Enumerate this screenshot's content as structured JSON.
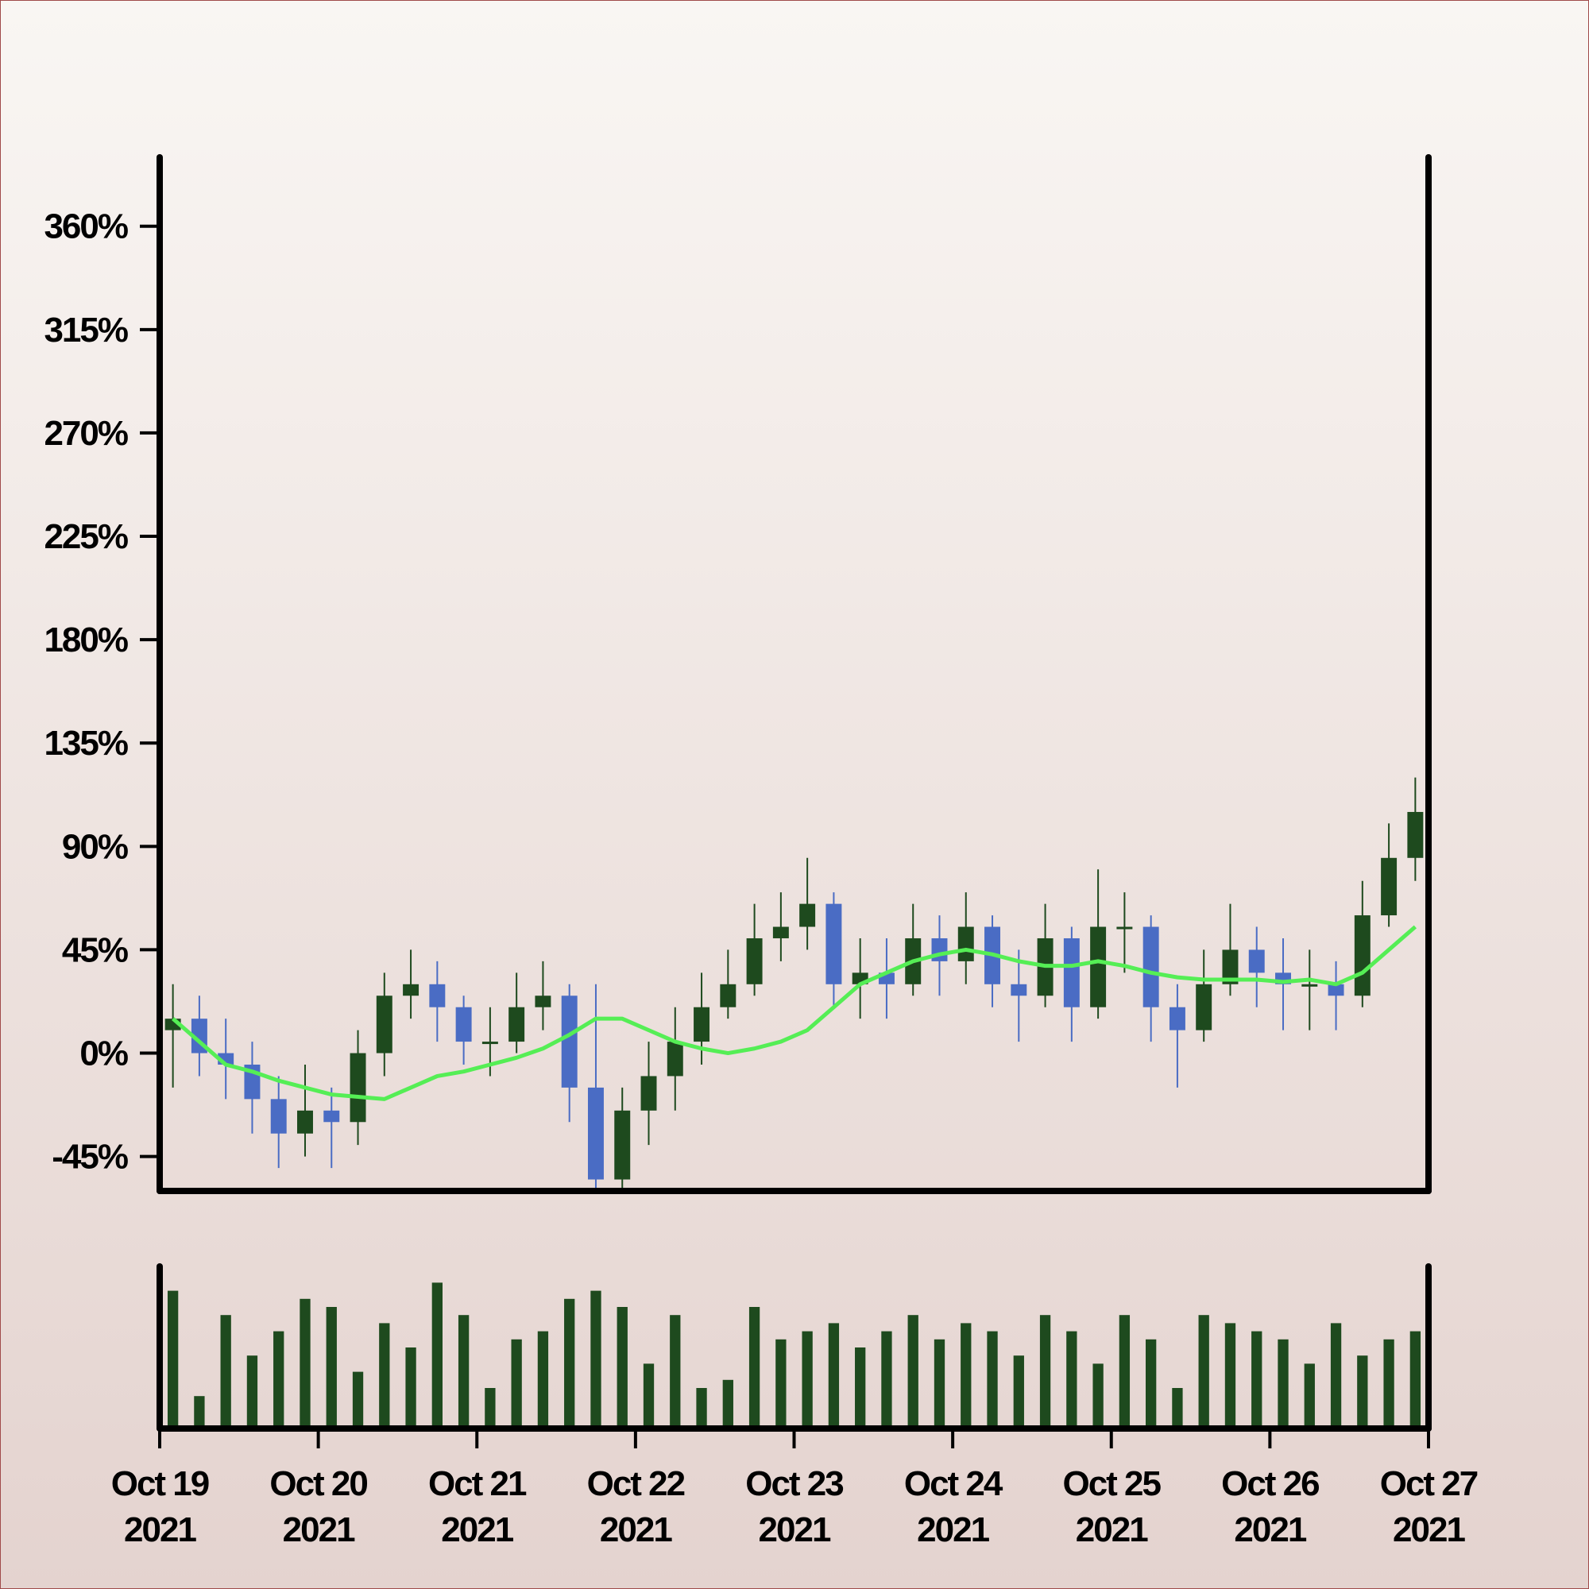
{
  "chart_data": {
    "type": "candlestick",
    "xlim": [
      0,
      48
    ],
    "xticks": [
      {
        "value": 0,
        "label": "Oct 19\n2021"
      },
      {
        "value": 6,
        "label": "Oct 20\n2021"
      },
      {
        "value": 12,
        "label": "Oct 21\n2021"
      },
      {
        "value": 18,
        "label": "Oct 22\n2021"
      },
      {
        "value": 24,
        "label": "Oct 23\n2021"
      },
      {
        "value": 30,
        "label": "Oct 24\n2021"
      },
      {
        "value": 36,
        "label": "Oct 25\n2021"
      },
      {
        "value": 42,
        "label": "Oct 26\n2021"
      },
      {
        "value": 48,
        "label": "Oct 27\n2021"
      }
    ],
    "ylim": [
      -60,
      390
    ],
    "yticks": [
      {
        "value": -45,
        "label": "-45%"
      },
      {
        "value": 0,
        "label": "0%"
      },
      {
        "value": 45,
        "label": "45%"
      },
      {
        "value": 90,
        "label": "90%"
      },
      {
        "value": 135,
        "label": "135%"
      },
      {
        "value": 180,
        "label": "180%"
      },
      {
        "value": 225,
        "label": "225%"
      },
      {
        "value": 270,
        "label": "270%"
      },
      {
        "value": 315,
        "label": "315%"
      },
      {
        "value": 360,
        "label": "360%"
      }
    ],
    "up_color": "#1e4a1e",
    "down_color": "#4a6cc4",
    "open": [
      10,
      15,
      0,
      -5,
      -20,
      -35,
      -25,
      -30,
      0,
      25,
      30,
      20,
      5,
      5,
      20,
      25,
      -15,
      -55,
      -25,
      -10,
      5,
      20,
      30,
      50,
      55,
      65,
      30,
      35,
      30,
      50,
      40,
      55,
      30,
      25,
      50,
      20,
      55,
      55,
      20,
      10,
      30,
      45,
      35,
      30,
      30,
      25,
      60,
      85
    ],
    "high": [
      30,
      25,
      15,
      5,
      -10,
      -5,
      -15,
      10,
      35,
      45,
      40,
      25,
      20,
      35,
      40,
      30,
      30,
      -15,
      5,
      20,
      35,
      45,
      65,
      70,
      85,
      70,
      50,
      50,
      65,
      60,
      70,
      60,
      45,
      65,
      55,
      80,
      70,
      60,
      30,
      45,
      65,
      55,
      50,
      45,
      40,
      75,
      100,
      120
    ],
    "low": [
      -15,
      -10,
      -20,
      -35,
      -50,
      -45,
      -50,
      -40,
      -10,
      15,
      5,
      -5,
      -10,
      0,
      10,
      -30,
      -60,
      -60,
      -40,
      -25,
      -5,
      15,
      25,
      40,
      45,
      20,
      15,
      15,
      25,
      25,
      30,
      20,
      5,
      20,
      5,
      15,
      35,
      5,
      -15,
      5,
      25,
      20,
      10,
      10,
      10,
      20,
      55,
      75
    ],
    "close": [
      15,
      0,
      -5,
      -20,
      -35,
      -25,
      -30,
      0,
      25,
      30,
      20,
      5,
      5,
      20,
      25,
      -15,
      -55,
      -25,
      -10,
      5,
      20,
      30,
      50,
      55,
      65,
      30,
      35,
      30,
      50,
      40,
      55,
      30,
      25,
      50,
      20,
      55,
      55,
      20,
      10,
      30,
      45,
      35,
      30,
      30,
      25,
      60,
      85,
      105
    ],
    "moving_average": {
      "color": "#55ee55",
      "values": [
        15,
        5,
        -5,
        -8,
        -12,
        -15,
        -18,
        -19,
        -20,
        -15,
        -10,
        -8,
        -5,
        -2,
        2,
        8,
        15,
        15,
        10,
        5,
        2,
        0,
        2,
        5,
        10,
        20,
        30,
        35,
        40,
        43,
        45,
        43,
        40,
        38,
        38,
        40,
        38,
        35,
        33,
        32,
        32,
        32,
        31,
        32,
        30,
        35,
        45,
        55
      ]
    },
    "volume": {
      "color": "#1e4a1e",
      "ylim": [
        0,
        100
      ],
      "values": [
        85,
        20,
        70,
        45,
        60,
        80,
        75,
        35,
        65,
        50,
        90,
        70,
        25,
        55,
        60,
        80,
        85,
        75,
        40,
        70,
        25,
        30,
        75,
        55,
        60,
        65,
        50,
        60,
        70,
        55,
        65,
        60,
        45,
        70,
        60,
        40,
        70,
        55,
        25,
        70,
        65,
        60,
        55,
        40,
        65,
        45,
        55,
        60
      ]
    }
  }
}
